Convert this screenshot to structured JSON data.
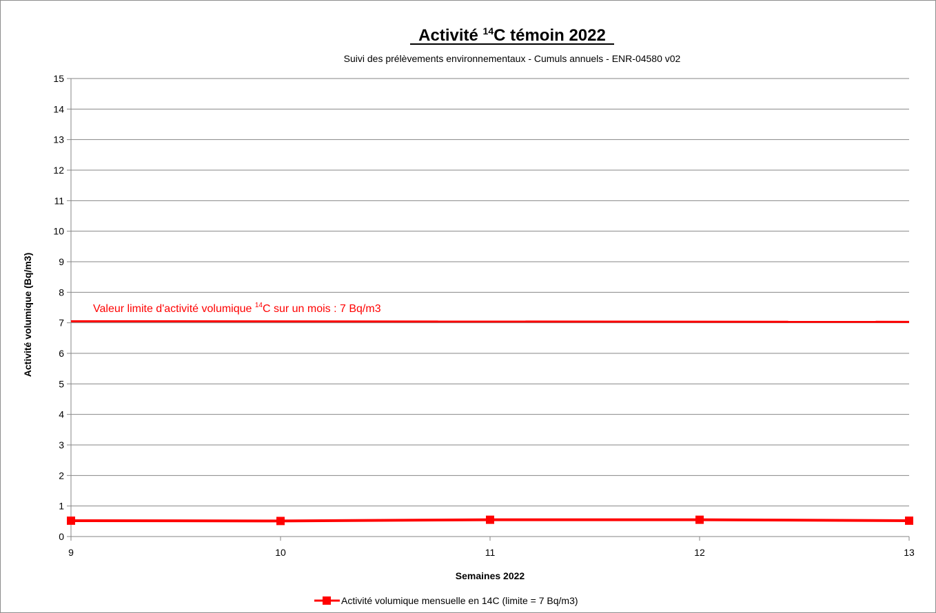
{
  "chart_data": {
    "type": "line",
    "title": {
      "prefix": "Activité ",
      "sup": "14",
      "suffix": "C témoin 2022"
    },
    "subtitle": "Suivi des prélèvements environnementaux - Cumuls annuels - ENR-04580 v02",
    "xlabel": "Semaines 2022",
    "ylabel": "Activité volumique (Bq/m3)",
    "xlim": [
      9,
      13
    ],
    "ylim": [
      0,
      15
    ],
    "x_ticks": [
      9,
      10,
      11,
      12,
      13
    ],
    "y_ticks": [
      0,
      1,
      2,
      3,
      4,
      5,
      6,
      7,
      8,
      9,
      10,
      11,
      12,
      13,
      14,
      15
    ],
    "grid": true,
    "legend_position": "bottom",
    "series": [
      {
        "name": "Activité  volumique mensuelle en 14C  (limite = 7 Bq/m3)",
        "color": "#ff0000",
        "marker": "square",
        "x": [
          9,
          10,
          11,
          12,
          13
        ],
        "y": [
          0.52,
          0.51,
          0.55,
          0.55,
          0.52
        ]
      }
    ],
    "reference_line": {
      "y_start": 7.05,
      "y_end": 7.03,
      "color": "#ff0000",
      "label": {
        "prefix": "Valeur limite d'activité volumique ",
        "sup": "14",
        "suffix": "C sur un mois : 7 Bq/m3"
      }
    }
  }
}
